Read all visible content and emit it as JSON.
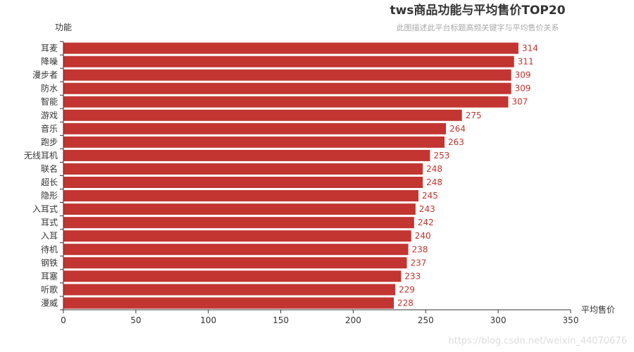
{
  "chart_data": {
    "type": "bar",
    "orientation": "horizontal",
    "title": "tws商品功能与平均售价TOP20",
    "subtitle": "此图描述此平台标题高频关键字与平均售价关系",
    "xlabel": "平均售价",
    "ylabel": "功能",
    "xlim": [
      0,
      350
    ],
    "xticks": [
      0,
      50,
      100,
      150,
      200,
      250,
      300,
      350
    ],
    "grid": false,
    "legend": "none",
    "bar_color": "#c23531",
    "label_color": "#c23531",
    "categories": [
      "耳麦",
      "降噪",
      "漫步者",
      "防水",
      "智能",
      "游戏",
      "音乐",
      "跑步",
      "无线耳机",
      "联名",
      "超长",
      "隐形",
      "入耳式",
      "耳式",
      "入耳",
      "待机",
      "钢铁",
      "耳塞",
      "听歌",
      "漫威"
    ],
    "values": [
      314,
      311,
      309,
      309,
      307,
      275,
      264,
      263,
      253,
      248,
      248,
      245,
      243,
      242,
      240,
      238,
      237,
      233,
      229,
      228
    ]
  },
  "watermark": "https://blog.csdn.net/weixin_44070676"
}
